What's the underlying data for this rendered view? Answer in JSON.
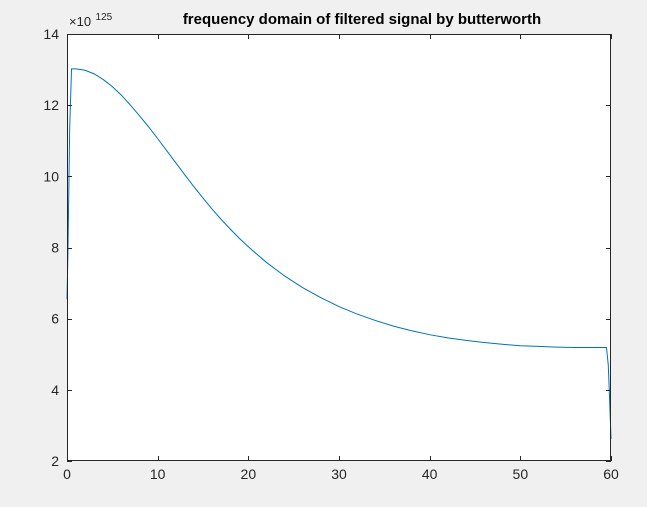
{
  "chart_data": {
    "type": "line",
    "title": "frequency domain of filtered signal by butterworth",
    "xlabel": "",
    "ylabel": "",
    "y_exponent": {
      "base": "10",
      "power": "125"
    },
    "xlim": [
      0,
      60
    ],
    "ylim": [
      2,
      14
    ],
    "xticks": [
      0,
      10,
      20,
      30,
      40,
      50,
      60
    ],
    "yticks": [
      2,
      4,
      6,
      8,
      10,
      12,
      14
    ],
    "xtick_labels": [
      "0",
      "10",
      "20",
      "30",
      "40",
      "50",
      "60"
    ],
    "ytick_labels": [
      "2",
      "4",
      "6",
      "8",
      "10",
      "12",
      "14"
    ],
    "grid": false,
    "line_color": "#0072bd",
    "axes_color": "#262626",
    "plot_background": "#ffffff",
    "figure_background": "#f0f0f0",
    "series": [
      {
        "x": [
          0,
          0.1,
          0.2,
          0.3,
          0.5,
          1,
          2,
          3,
          4,
          5,
          6,
          7,
          8,
          9,
          10,
          11,
          12,
          13,
          14,
          15,
          16,
          17,
          18,
          19,
          20,
          22,
          24,
          26,
          28,
          30,
          32,
          34,
          36,
          38,
          40,
          42,
          44,
          46,
          48,
          50,
          52,
          54,
          56,
          58,
          59.5,
          59.7,
          59.85,
          60
        ],
        "y": [
          6.55,
          7.8,
          9.6,
          11.4,
          13.02,
          13.02,
          12.98,
          12.88,
          12.72,
          12.52,
          12.28,
          12.0,
          11.7,
          11.39,
          11.06,
          10.72,
          10.38,
          10.04,
          9.71,
          9.39,
          9.08,
          8.79,
          8.52,
          8.26,
          8.02,
          7.58,
          7.2,
          6.87,
          6.59,
          6.34,
          6.13,
          5.95,
          5.79,
          5.66,
          5.55,
          5.46,
          5.39,
          5.33,
          5.28,
          5.24,
          5.22,
          5.2,
          5.19,
          5.19,
          5.19,
          4.7,
          3.7,
          2.62
        ]
      }
    ]
  }
}
